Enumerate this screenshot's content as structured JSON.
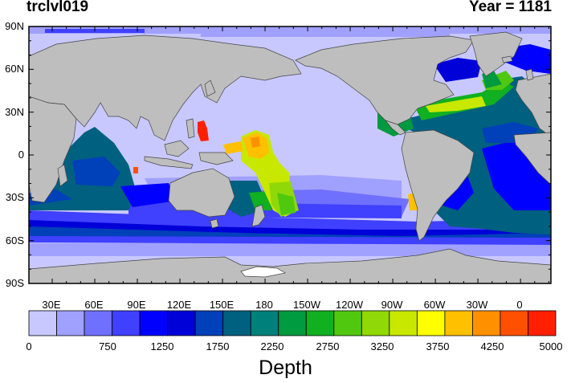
{
  "header": {
    "variable": "trclvl019",
    "year": "Year = 1181"
  },
  "map": {
    "lat_labels": [
      "90N",
      "60N",
      "30N",
      "0",
      "30S",
      "60S",
      "90S"
    ],
    "lon_labels": [
      "30E",
      "60E",
      "90E",
      "120E",
      "150E",
      "180",
      "150W",
      "120W",
      "90W",
      "60W",
      "30W",
      "0"
    ],
    "colors": {
      "land": "#bebebe",
      "ocean_base": "#c8c8ff",
      "antarctic_shelf": "#ffffff"
    }
  },
  "colorbar": {
    "title": "Depth",
    "tick_labels": [
      "0",
      "750",
      "1250",
      "1750",
      "2250",
      "2750",
      "3250",
      "3750",
      "4250",
      "5000"
    ],
    "tick_values": [
      0,
      750,
      1250,
      1750,
      2250,
      2750,
      3250,
      3750,
      4250,
      5000
    ],
    "colors": [
      "#c8c8ff",
      "#a0a0ff",
      "#7070ff",
      "#4040ff",
      "#0000ff",
      "#0000d8",
      "#0040b8",
      "#006080",
      "#00807a",
      "#009a40",
      "#10b020",
      "#50c810",
      "#90d808",
      "#c8e800",
      "#ffff00",
      "#ffc000",
      "#ff9000",
      "#ff5000",
      "#ff2000"
    ]
  }
}
